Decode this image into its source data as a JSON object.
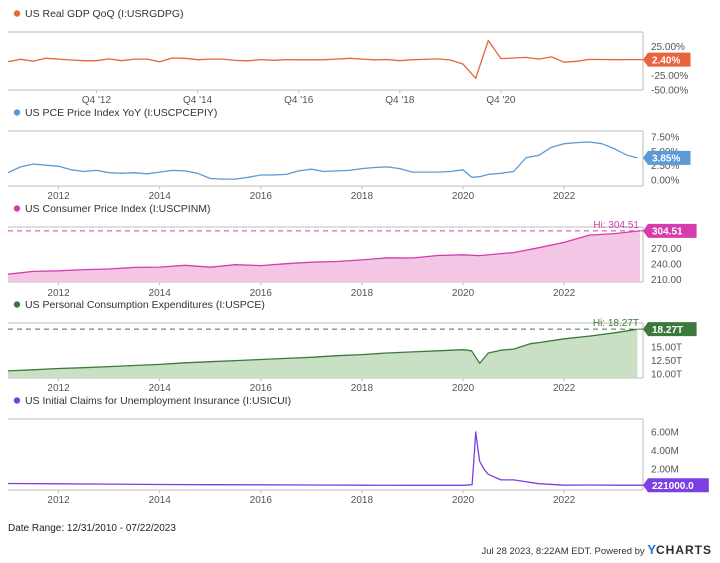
{
  "footer": {
    "date_range": "Date Range: 12/31/2010 - 07/22/2023",
    "timestamp": "Jul 28 2023, 8:22AM EDT.",
    "powered_by": "Powered by",
    "brand_y": "Y",
    "brand_rest": "CHARTS"
  },
  "chart_data": [
    {
      "type": "line",
      "title": "US Real GDP QoQ (I:USRGDPG)",
      "color": "#e8643c",
      "x_range": [
        2011.0,
        2023.56
      ],
      "ylim": [
        -50,
        50
      ],
      "x_ticks": [
        {
          "x": 2012.75,
          "label": "Q4 '12"
        },
        {
          "x": 2014.75,
          "label": "Q4 '14"
        },
        {
          "x": 2016.75,
          "label": "Q4 '16"
        },
        {
          "x": 2018.75,
          "label": "Q4 '18"
        },
        {
          "x": 2020.75,
          "label": "Q4 '20"
        }
      ],
      "y_ticks": [
        {
          "y": 25,
          "label": "25.00%"
        },
        {
          "y": -25,
          "label": "-25.00%"
        },
        {
          "y": -50,
          "label": "-50.00%"
        }
      ],
      "last_value": {
        "y": 2.4,
        "label": "2.40%"
      },
      "x": [
        2011.0,
        2011.25,
        2011.5,
        2011.75,
        2012.0,
        2012.25,
        2012.5,
        2012.75,
        2013.0,
        2013.25,
        2013.5,
        2013.75,
        2014.0,
        2014.25,
        2014.5,
        2014.75,
        2015.0,
        2015.25,
        2015.5,
        2015.75,
        2016.0,
        2016.25,
        2016.5,
        2016.75,
        2017.0,
        2017.25,
        2017.5,
        2017.75,
        2018.0,
        2018.25,
        2018.5,
        2018.75,
        2019.0,
        2019.25,
        2019.5,
        2019.75,
        2020.0,
        2020.25,
        2020.5,
        2020.75,
        2021.0,
        2021.25,
        2021.5,
        2021.75,
        2022.0,
        2022.25,
        2022.5,
        2022.75,
        2023.0,
        2023.25,
        2023.56
      ],
      "y": [
        -1.0,
        2.9,
        -0.1,
        4.7,
        3.2,
        1.7,
        0.5,
        0.5,
        3.6,
        0.5,
        3.2,
        3.2,
        -1.4,
        5.2,
        4.7,
        2.2,
        3.3,
        3.3,
        1.0,
        0.4,
        2.4,
        1.2,
        2.4,
        2.0,
        2.0,
        2.3,
        3.2,
        4.6,
        3.3,
        2.1,
        2.5,
        0.6,
        2.2,
        2.7,
        3.6,
        1.8,
        -5.3,
        -29.9,
        35.3,
        4.2,
        5.2,
        6.2,
        3.3,
        7.0,
        -2.0,
        -0.6,
        2.7,
        2.6,
        2.2,
        2.4,
        2.4
      ]
    },
    {
      "type": "line",
      "title": "US PCE Price Index YoY (I:USCPCEPIY)",
      "color": "#5b9bd5",
      "x_range": [
        2011.0,
        2023.56
      ],
      "ylim": [
        -1,
        8.5
      ],
      "x_ticks": [
        {
          "x": 2012,
          "label": "2012"
        },
        {
          "x": 2014,
          "label": "2014"
        },
        {
          "x": 2016,
          "label": "2016"
        },
        {
          "x": 2018,
          "label": "2018"
        },
        {
          "x": 2020,
          "label": "2020"
        },
        {
          "x": 2022,
          "label": "2022"
        }
      ],
      "y_ticks": [
        {
          "y": 7.5,
          "label": "7.50%"
        },
        {
          "y": 5.0,
          "label": "5.00%"
        },
        {
          "y": 2.5,
          "label": "2.50%"
        },
        {
          "y": 0.0,
          "label": "0.00%"
        }
      ],
      "last_value": {
        "y": 3.85,
        "label": "3.85%"
      },
      "x": [
        2011.0,
        2011.25,
        2011.5,
        2011.75,
        2012.0,
        2012.25,
        2012.5,
        2012.75,
        2013.0,
        2013.25,
        2013.5,
        2013.75,
        2014.0,
        2014.25,
        2014.5,
        2014.75,
        2015.0,
        2015.25,
        2015.5,
        2015.75,
        2016.0,
        2016.25,
        2016.5,
        2016.75,
        2017.0,
        2017.25,
        2017.5,
        2017.75,
        2018.0,
        2018.25,
        2018.5,
        2018.75,
        2019.0,
        2019.25,
        2019.5,
        2019.75,
        2020.0,
        2020.17,
        2020.33,
        2020.5,
        2020.75,
        2021.0,
        2021.25,
        2021.5,
        2021.75,
        2022.0,
        2022.25,
        2022.5,
        2022.75,
        2023.0,
        2023.25,
        2023.45
      ],
      "y": [
        1.3,
        2.3,
        2.8,
        2.6,
        2.4,
        1.8,
        1.5,
        1.7,
        1.3,
        1.2,
        1.3,
        1.1,
        1.4,
        1.7,
        1.6,
        1.2,
        0.3,
        0.2,
        0.2,
        0.5,
        0.9,
        0.9,
        1.0,
        1.6,
        1.9,
        1.5,
        1.6,
        1.7,
        2.0,
        2.2,
        2.3,
        2.0,
        1.4,
        1.4,
        1.4,
        1.5,
        1.8,
        0.5,
        0.6,
        1.0,
        1.2,
        1.5,
        3.9,
        4.3,
        5.7,
        6.3,
        6.5,
        6.6,
        6.3,
        5.4,
        4.3,
        3.85
      ]
    },
    {
      "type": "area",
      "title": "US Consumer Price Index (I:USCPINM)",
      "color": "#d63cad",
      "fill": "#f3c6e6",
      "x_range": [
        2011.0,
        2023.56
      ],
      "ylim": [
        205,
        312
      ],
      "x_ticks": [
        {
          "x": 2012,
          "label": "2012"
        },
        {
          "x": 2014,
          "label": "2014"
        },
        {
          "x": 2016,
          "label": "2016"
        },
        {
          "x": 2018,
          "label": "2018"
        },
        {
          "x": 2020,
          "label": "2020"
        },
        {
          "x": 2022,
          "label": "2022"
        }
      ],
      "y_ticks": [
        {
          "y": 270,
          "label": "270.00"
        },
        {
          "y": 240,
          "label": "240.00"
        },
        {
          "y": 210,
          "label": "210.00"
        }
      ],
      "last_value": {
        "y": 304.51,
        "label": "304.51"
      },
      "hi_line": {
        "y": 304.51,
        "label": "Hi: 304.51"
      },
      "x": [
        2011.0,
        2011.5,
        2012.0,
        2012.5,
        2013.0,
        2013.5,
        2014.0,
        2014.5,
        2015.0,
        2015.5,
        2016.0,
        2016.5,
        2017.0,
        2017.5,
        2018.0,
        2018.5,
        2019.0,
        2019.5,
        2020.0,
        2020.33,
        2020.75,
        2021.0,
        2021.5,
        2022.0,
        2022.5,
        2023.0,
        2023.5
      ],
      "y": [
        220.2,
        225.7,
        226.7,
        229.1,
        230.3,
        233.4,
        233.9,
        237.5,
        233.7,
        238.6,
        236.9,
        240.6,
        243.6,
        244.8,
        248.0,
        252.0,
        251.7,
        256.6,
        257.9,
        256.4,
        260.2,
        262.2,
        271.7,
        282.0,
        296.3,
        299.2,
        304.51
      ]
    },
    {
      "type": "area",
      "title": "US Personal Consumption Expenditures (I:USPCE)",
      "color": "#3c7a3c",
      "fill": "#c9e0c5",
      "x_range": [
        2011.0,
        2023.56
      ],
      "ylim": [
        9.3,
        19.4
      ],
      "x_ticks": [
        {
          "x": 2012,
          "label": "2012"
        },
        {
          "x": 2014,
          "label": "2014"
        },
        {
          "x": 2016,
          "label": "2016"
        },
        {
          "x": 2018,
          "label": "2018"
        },
        {
          "x": 2020,
          "label": "2020"
        },
        {
          "x": 2022,
          "label": "2022"
        }
      ],
      "y_ticks": [
        {
          "y": 15,
          "label": "15.00T"
        },
        {
          "y": 12.5,
          "label": "12.50T"
        },
        {
          "y": 10,
          "label": "10.00T"
        }
      ],
      "last_value": {
        "y": 18.27,
        "label": "18.27T"
      },
      "hi_line": {
        "y": 18.27,
        "label": "Hi: 18.27T"
      },
      "x": [
        2011.0,
        2011.5,
        2012.0,
        2012.5,
        2013.0,
        2013.5,
        2014.0,
        2014.5,
        2015.0,
        2015.5,
        2016.0,
        2016.5,
        2017.0,
        2017.5,
        2018.0,
        2018.5,
        2019.0,
        2019.5,
        2020.0,
        2020.17,
        2020.33,
        2020.5,
        2020.75,
        2021.0,
        2021.33,
        2021.5,
        2022.0,
        2022.5,
        2023.0,
        2023.45
      ],
      "y": [
        10.6,
        10.8,
        11.05,
        11.2,
        11.4,
        11.6,
        11.8,
        12.1,
        12.3,
        12.5,
        12.7,
        12.9,
        13.1,
        13.4,
        13.6,
        13.9,
        14.1,
        14.3,
        14.5,
        14.3,
        12.0,
        13.9,
        14.4,
        14.6,
        15.6,
        15.8,
        16.5,
        17.0,
        17.6,
        18.27
      ]
    },
    {
      "type": "line",
      "title": "US Initial Claims for Unemployment Insurance (I:USICUI)",
      "color": "#7b3fe4",
      "x_range": [
        2011.0,
        2023.56
      ],
      "ylim": [
        -0.3,
        7.4
      ],
      "x_ticks": [
        {
          "x": 2012,
          "label": "2012"
        },
        {
          "x": 2014,
          "label": "2014"
        },
        {
          "x": 2016,
          "label": "2016"
        },
        {
          "x": 2018,
          "label": "2018"
        },
        {
          "x": 2020,
          "label": "2020"
        },
        {
          "x": 2022,
          "label": "2022"
        }
      ],
      "y_ticks": [
        {
          "y": 6,
          "label": "6.00M"
        },
        {
          "y": 4,
          "label": "4.00M"
        },
        {
          "y": 2,
          "label": "2.00M"
        }
      ],
      "last_value": {
        "y": 0.221,
        "label": "221000.0"
      },
      "x": [
        2011.0,
        2012.0,
        2013.0,
        2014.0,
        2015.0,
        2016.0,
        2017.0,
        2018.0,
        2019.0,
        2020.0,
        2020.18,
        2020.22,
        2020.25,
        2020.29,
        2020.33,
        2020.42,
        2020.5,
        2020.75,
        2021.0,
        2021.5,
        2022.0,
        2022.5,
        2023.0,
        2023.56
      ],
      "y": [
        0.41,
        0.37,
        0.34,
        0.3,
        0.27,
        0.26,
        0.24,
        0.22,
        0.21,
        0.21,
        0.28,
        3.3,
        6.0,
        4.3,
        2.8,
        1.9,
        1.4,
        0.8,
        0.8,
        0.38,
        0.22,
        0.24,
        0.22,
        0.221
      ]
    }
  ]
}
